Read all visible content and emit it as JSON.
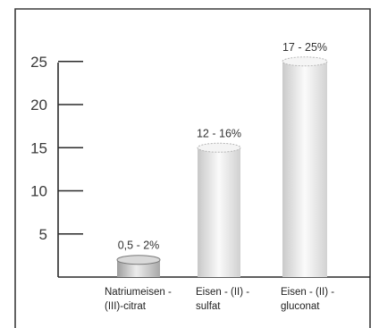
{
  "chart_data": {
    "type": "bar",
    "title": "",
    "xlabel": "",
    "ylabel": "",
    "ylim": [
      0,
      27
    ],
    "yticks": [
      5,
      10,
      15,
      20,
      25
    ],
    "categories": [
      [
        "Natriumeisen -",
        "(III)-citrat"
      ],
      [
        "Eisen - (II) -",
        "sulfat"
      ],
      [
        "Eisen - (II) -",
        "gluconat"
      ]
    ],
    "values": [
      2,
      15,
      25
    ],
    "data_labels": [
      "0,5 - 2%",
      "12 - 16%",
      "17 - 25%"
    ],
    "style": "3d-cylinder"
  },
  "colors": {
    "frame": "#3c3c3c",
    "axis": "#2a2a2a",
    "bar_1_light": "#f0f0f0",
    "bar_1_dark": "#a6a6a6",
    "bar_2_light": "#fafafa",
    "bar_2_dark": "#cdcdcd",
    "bar_3_light": "#fbfbfb",
    "bar_3_dark": "#cfcfcf"
  }
}
